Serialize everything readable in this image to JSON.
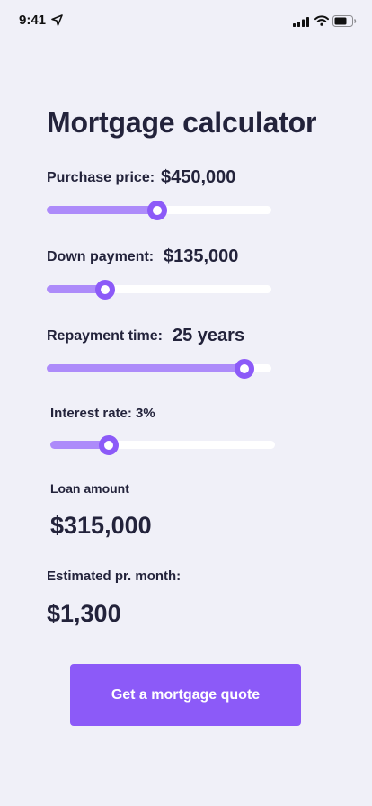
{
  "status_bar": {
    "time": "9:41",
    "icons": [
      "location-arrow-icon",
      "cellular-signal-icon",
      "wifi-icon",
      "battery-icon"
    ]
  },
  "title": "Mortgage calculator",
  "purchase_price": {
    "label": "Purchase price:",
    "value": "$450,000",
    "fraction": 0.49
  },
  "down_payment": {
    "label": "Down payment:",
    "value": "$135,000",
    "fraction": 0.26
  },
  "repayment_time": {
    "label": "Repayment time:",
    "value": "25 years",
    "fraction": 0.88
  },
  "interest_rate": {
    "label": "Interest rate: 3%",
    "fraction": 0.26
  },
  "loan_amount": {
    "label": "Loan amount",
    "value": "$315,000"
  },
  "estimated_monthly": {
    "label": "Estimated pr. month:",
    "value": "$1,300"
  },
  "cta_label": "Get a mortgage quote",
  "colors": {
    "background": "#f0f0f8",
    "accent": "#8c5af8",
    "slider_fill": "#ad8bfa",
    "track": "#ffffff",
    "text": "#23233b"
  }
}
